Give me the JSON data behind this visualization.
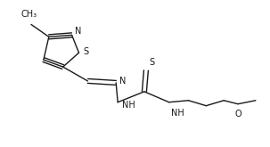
{
  "bg_color": "#ffffff",
  "line_color": "#1a1a1a",
  "line_width": 1.0,
  "font_size": 7.0,
  "figsize": [
    3.03,
    1.65
  ],
  "dpi": 100,
  "xlim": [
    0,
    303
  ],
  "ylim": [
    0,
    165
  ]
}
